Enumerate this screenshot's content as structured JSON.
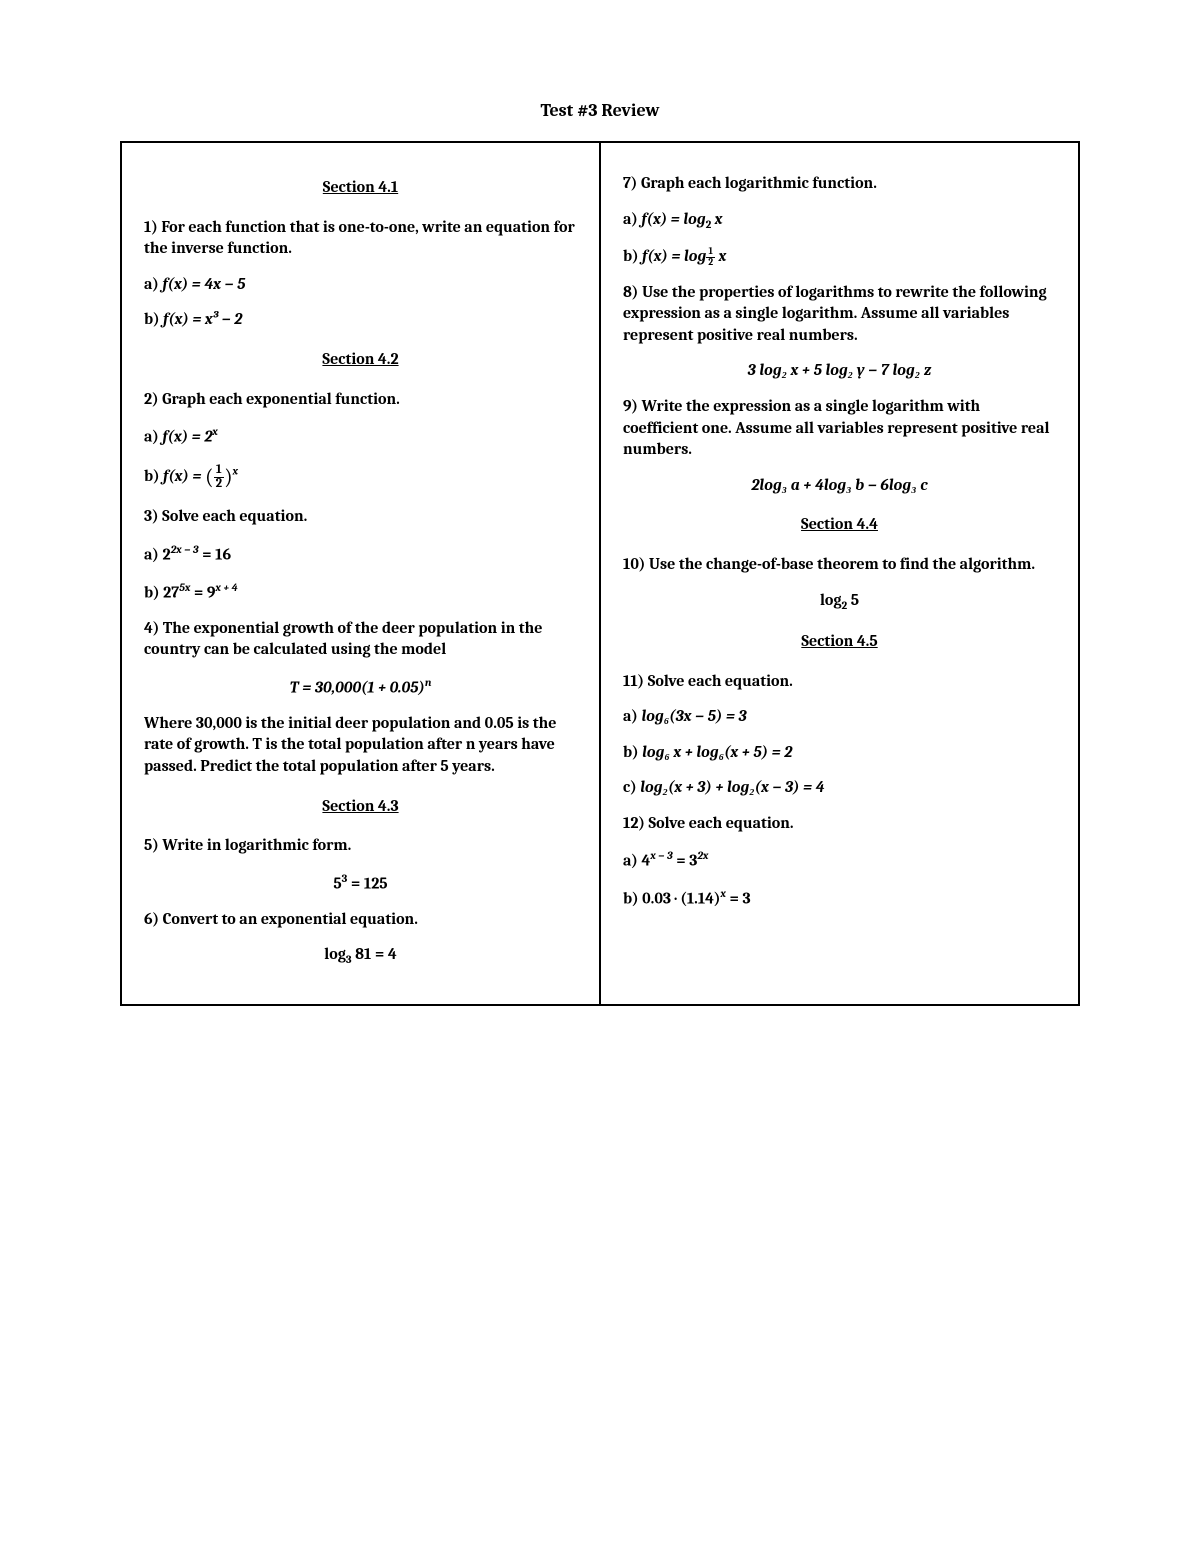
{
  "title": "Test #3 Review",
  "left": {
    "s41": "Section 4.1",
    "q1": "1) For each function that is one-to-one, write an equation for the inverse function.",
    "q1a_label": "a) ",
    "q1a_expr": "f(x) = 4x − 5",
    "q1b_label": "b) ",
    "q1b_expr": "f(x) = x³ − 2",
    "s42": "Section 4.2",
    "q2": "2) Graph each exponential function.",
    "q2a_label": "a) ",
    "q2a_expr_pre": "f(x) = 2",
    "q2a_expr_sup": "x",
    "q2b_label": "b) ",
    "q2b_pre": "f(x) = ",
    "q2b_frac_num": "1",
    "q2b_frac_den": "2",
    "q2b_sup": "x",
    "q3": "3) Solve each equation.",
    "q3a_label": "a) ",
    "q3a_base": "2",
    "q3a_sup": "2x − 3",
    "q3a_rhs": " = 16",
    "q3b_label": "b) ",
    "q3b_base": "27",
    "q3b_sup": "5x",
    "q3b_mid": " = 9",
    "q3b_sup2": "x + 4",
    "q4": "4) The exponential growth of the deer population in the country can be calculated using the model",
    "q4_eq_pre": "T = 30,000(1 + 0.05)",
    "q4_eq_sup": "n",
    "q4_post": "Where 30,000 is the initial deer population and 0.05 is the rate of growth. T is the total population after n years have passed. Predict the total population after 5 years.",
    "s43": "Section 4.3",
    "q5": "5) Write in logarithmic form.",
    "q5_eq_base": "5",
    "q5_eq_sup": "3",
    "q5_eq_rhs": " = 125",
    "q6": "6) Convert to an exponential equation.",
    "q6_eq_pre": "log",
    "q6_eq_sub": "3",
    "q6_eq_rhs": " 81 = 4"
  },
  "right": {
    "q7": "7) Graph each logarithmic function.",
    "q7a_label": "a) ",
    "q7a_pre": "f(x) = log",
    "q7a_sub": "2",
    "q7a_post": " x",
    "q7b_label": "b) ",
    "q7b_pre": "f(x) = log",
    "q7b_frac_num": "1",
    "q7b_frac_den": "2",
    "q7b_post": " x",
    "q8": "8) Use the properties of logarithms to rewrite the following expression as a single logarithm. Assume all variables represent positive real numbers.",
    "q8_eq": "3 log₂ x + 5 log₂ y − 7 log₂ z",
    "q9": "9) Write the expression as a single logarithm with coefficient one. Assume all variables represent positive real numbers.",
    "q9_eq": "2log₃ a + 4log₃ b − 6log₃ c",
    "s44": "Section 4.4",
    "q10": "10) Use the change-of-base theorem to find the algorithm.",
    "q10_eq_pre": "log",
    "q10_eq_sub": "2",
    "q10_eq_post": " 5",
    "s45": "Section 4.5",
    "q11": "11) Solve each equation.",
    "q11a_label": "a) ",
    "q11a": "log₆(3x − 5) = 3",
    "q11b_label": "b) ",
    "q11b": "log₆ x + log₆(x + 5) = 2",
    "q11c_label": "c) ",
    "q11c": "log₂(x + 3) + log₂(x − 3) = 4",
    "q12": "12) Solve each equation.",
    "q12a_label": "a) ",
    "q12a_base": "4",
    "q12a_sup": "x − 3",
    "q12a_mid": " = 3",
    "q12a_sup2": "2x",
    "q12b_label": "b) ",
    "q12b_pre": "0.03 · (1.14)",
    "q12b_sup": "x",
    "q12b_post": " = 3"
  }
}
